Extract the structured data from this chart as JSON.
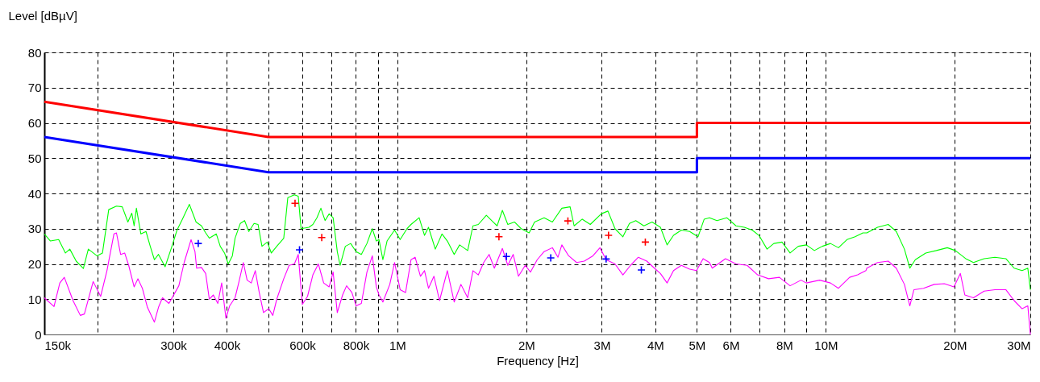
{
  "chart_data": {
    "type": "line",
    "xlabel": "Frequency [Hz]",
    "ylabel": "Level [dBµV]",
    "log": "x",
    "grid": true,
    "xlim": [
      150000,
      30000000
    ],
    "ylim": [
      0,
      80
    ],
    "xticks": [
      {
        "value": 150000,
        "label": "150k"
      },
      {
        "value": 200000,
        "label": null
      },
      {
        "value": 300000,
        "label": "300k"
      },
      {
        "value": 400000,
        "label": "400k"
      },
      {
        "value": 500000,
        "label": null
      },
      {
        "value": 600000,
        "label": "600k"
      },
      {
        "value": 700000,
        "label": null
      },
      {
        "value": 800000,
        "label": "800k"
      },
      {
        "value": 900000,
        "label": null
      },
      {
        "value": 1000000,
        "label": "1M"
      },
      {
        "value": 2000000,
        "label": "2M"
      },
      {
        "value": 3000000,
        "label": "3M"
      },
      {
        "value": 4000000,
        "label": "4M"
      },
      {
        "value": 5000000,
        "label": "5M"
      },
      {
        "value": 6000000,
        "label": "6M"
      },
      {
        "value": 7000000,
        "label": null
      },
      {
        "value": 8000000,
        "label": "8M"
      },
      {
        "value": 9000000,
        "label": null
      },
      {
        "value": 10000000,
        "label": "10M"
      },
      {
        "value": 20000000,
        "label": "20M"
      },
      {
        "value": 30000000,
        "label": "30M"
      }
    ],
    "yticks": [
      0,
      10,
      20,
      30,
      40,
      50,
      60,
      70,
      80
    ],
    "series": [
      {
        "marker": "none",
        "color": "#ff0000",
        "x": [
          150000,
          500000,
          5000000,
          5000000,
          30000000
        ],
        "values": [
          66,
          56,
          56,
          60,
          60
        ]
      },
      {
        "marker": "none",
        "color": "#0000ff",
        "x": [
          150000,
          500000,
          5000000,
          5000000,
          30000000
        ],
        "values": [
          56,
          46,
          46,
          50,
          50
        ]
      },
      {
        "marker": "none",
        "color": "#00ff00",
        "x": [
          150000,
          155000,
          162000,
          168000,
          172000,
          178000,
          185000,
          190000,
          199000,
          205000,
          212000,
          221000,
          228000,
          235000,
          240000,
          243000,
          246000,
          252000,
          259000,
          265000,
          271000,
          277000,
          287000,
          297000,
          306000,
          315000,
          327000,
          339000,
          349000,
          357000,
          364000,
          378000,
          386000,
          395000,
          403000,
          412000,
          418000,
          430000,
          440000,
          450000,
          463000,
          473000,
          483000,
          497000,
          508000,
          523000,
          543000,
          555000,
          575000,
          587000,
          596000,
          622000,
          635000,
          649000,
          663000,
          678000,
          693000,
          708000,
          724000,
          735000,
          756000,
          778000,
          801000,
          824000,
          849000,
          874000,
          893000,
          906000,
          925000,
          946000,
          985000,
          1015000,
          1053000,
          1076000,
          1124000,
          1157000,
          1182000,
          1226000,
          1271000,
          1308000,
          1357000,
          1397000,
          1459000,
          1501000,
          1545000,
          1613000,
          1672000,
          1709000,
          1758000,
          1810000,
          1876000,
          1945000,
          2030000,
          2090000,
          2200000,
          2300000,
          2420000,
          2530000,
          2585000,
          2700000,
          2820000,
          2990000,
          3100000,
          3220000,
          3360000,
          3480000,
          3600000,
          3760000,
          3930000,
          4110000,
          4260000,
          4410000,
          4600000,
          4810000,
          5030000,
          5200000,
          5350000,
          5570000,
          5870000,
          6170000,
          6450000,
          6730000,
          6980000,
          7290000,
          7560000,
          7900000,
          8250000,
          8620000,
          9000000,
          9400000,
          9810000,
          10250000,
          10700000,
          11200000,
          11700000,
          12200000,
          12460000,
          13200000,
          13980000,
          14600000,
          15250000,
          15700000,
          16170000,
          17100000,
          18100000,
          19200000,
          20050000,
          21200000,
          22100000,
          23400000,
          24800000,
          26300000,
          27500000,
          28700000,
          29600000,
          30000000
        ],
        "values": [
          28.5,
          26.5,
          26.9,
          23.1,
          24.2,
          20.8,
          18.7,
          24.2,
          22.3,
          23.1,
          35.4,
          36.4,
          36.2,
          31.9,
          34.4,
          30.8,
          35.8,
          28.5,
          29.2,
          25,
          21.2,
          22.7,
          19.2,
          24.6,
          29.6,
          32.7,
          36.9,
          31.9,
          30.8,
          28.8,
          27.3,
          28.5,
          25,
          23.1,
          20,
          22.3,
          27.3,
          31.5,
          32.3,
          29.2,
          31.5,
          31.2,
          25,
          26.2,
          23.1,
          25,
          27.3,
          38.8,
          39.6,
          39.2,
          30,
          30.4,
          31.2,
          33.1,
          35.8,
          32.3,
          34.2,
          33.1,
          23.5,
          19.6,
          25,
          25.8,
          23.5,
          22.7,
          25.8,
          30,
          26.5,
          26.9,
          21.2,
          26.5,
          29.6,
          26.9,
          30,
          31.2,
          33.1,
          28.1,
          30.4,
          24.2,
          28.5,
          26.5,
          22.7,
          25.4,
          23.8,
          30.8,
          31.2,
          33.8,
          31.9,
          30.8,
          35.2,
          31.2,
          31.9,
          30,
          28.8,
          31.9,
          33.1,
          31.9,
          35.8,
          36.2,
          30.8,
          32.7,
          31.2,
          34.2,
          35,
          30,
          27.7,
          31.5,
          32.3,
          30.8,
          31.9,
          30.4,
          25.4,
          28.1,
          29.6,
          29.2,
          27.7,
          32.7,
          33.1,
          32.3,
          33.1,
          30.8,
          30.4,
          29.6,
          28.1,
          24.2,
          25.8,
          26.2,
          23.1,
          25,
          25.4,
          23.8,
          25,
          25.8,
          24.6,
          26.9,
          27.7,
          28.8,
          28.8,
          30.4,
          31.2,
          29.2,
          24.2,
          18.8,
          21.2,
          23.1,
          23.8,
          24.6,
          23.8,
          21.5,
          20.4,
          21.5,
          21.9,
          21.5,
          18.8,
          18.1,
          18.8,
          12.7
        ]
      },
      {
        "marker": "none",
        "color": "#ff00ff",
        "x": [
          150000,
          158000,
          163000,
          167000,
          175000,
          182000,
          186000,
          195000,
          203000,
          210000,
          218000,
          221000,
          226000,
          231000,
          236000,
          243000,
          248000,
          254000,
          261000,
          271000,
          277000,
          283000,
          293000,
          309000,
          318000,
          330000,
          337000,
          340000,
          349000,
          357000,
          364000,
          372000,
          381000,
          389000,
          398000,
          406000,
          418000,
          427000,
          437000,
          446000,
          456000,
          466000,
          476000,
          487000,
          501000,
          512000,
          523000,
          543000,
          559000,
          575000,
          587000,
          600000,
          617000,
          635000,
          654000,
          673000,
          693000,
          708000,
          724000,
          745000,
          761000,
          783000,
          801000,
          824000,
          849000,
          874000,
          893000,
          906000,
          925000,
          960000,
          985000,
          1015000,
          1045000,
          1076000,
          1100000,
          1132000,
          1157000,
          1182000,
          1217000,
          1254000,
          1308000,
          1357000,
          1407000,
          1459000,
          1501000,
          1545000,
          1590000,
          1637000,
          1684000,
          1758000,
          1810000,
          1863000,
          1917000,
          1988000,
          2045000,
          2120000,
          2200000,
          2300000,
          2370000,
          2420000,
          2510000,
          2620000,
          2730000,
          2860000,
          2970000,
          3070000,
          3220000,
          3360000,
          3500000,
          3650000,
          3820000,
          3980000,
          4110000,
          4260000,
          4410000,
          4600000,
          4810000,
          4990000,
          5170000,
          5350000,
          5430000,
          5830000,
          6170000,
          6550000,
          6930000,
          7350000,
          7790000,
          8250000,
          8750000,
          9000000,
          9670000,
          10250000,
          10700000,
          11360000,
          11860000,
          12400000,
          12460000,
          13200000,
          13980000,
          14600000,
          15250000,
          15700000,
          16050000,
          16900000,
          17900000,
          18900000,
          19900000,
          20600000,
          21100000,
          22100000,
          23400000,
          24800000,
          26300000,
          27500000,
          28700000,
          29600000,
          30000000
        ],
        "values": [
          10.4,
          7.9,
          14.6,
          16.2,
          9.6,
          5.4,
          5.8,
          15,
          10.8,
          18.1,
          28.5,
          28.8,
          22.7,
          23.1,
          19.6,
          13.5,
          15.8,
          13.1,
          7.7,
          3.5,
          7.7,
          10.4,
          8.8,
          13.8,
          20.4,
          26.9,
          23.5,
          18.8,
          19,
          17.3,
          10,
          11.2,
          8.8,
          14.6,
          4.6,
          8.1,
          10.4,
          15,
          20.4,
          15.4,
          14.6,
          18.1,
          11.9,
          6.2,
          7.3,
          5.4,
          10,
          15.8,
          19.6,
          20,
          22.7,
          8.5,
          10.8,
          16.9,
          20,
          14.6,
          13.5,
          17.7,
          6.2,
          11.2,
          13.8,
          11.9,
          8.1,
          8.8,
          17.7,
          22.3,
          13.5,
          11.2,
          9.2,
          14.2,
          20.4,
          12.7,
          11.9,
          21.2,
          21.9,
          16.5,
          18.1,
          13.1,
          16.5,
          9.6,
          18.1,
          9.2,
          14.2,
          10.4,
          18.1,
          16.9,
          20.4,
          22.7,
          18.8,
          24.4,
          19.6,
          22.7,
          16.5,
          19.6,
          17.7,
          21.2,
          23.5,
          24.6,
          21.9,
          25.4,
          22.3,
          20.4,
          20.8,
          22.3,
          24.6,
          21.2,
          20,
          16.9,
          19.6,
          21.9,
          20.8,
          18.8,
          17.3,
          14.6,
          18.1,
          19.6,
          18.5,
          18.1,
          21.5,
          20.4,
          18.8,
          21.5,
          20,
          19.6,
          16.9,
          15.8,
          16.2,
          13.8,
          15.4,
          14.6,
          15.4,
          14.6,
          13.1,
          16.2,
          16.9,
          18.1,
          18.8,
          20.4,
          20.8,
          18.8,
          14.2,
          8.1,
          12.7,
          13.1,
          14.2,
          14.4,
          13.5,
          17.3,
          11.2,
          10.4,
          12.3,
          12.7,
          12.7,
          9.6,
          7.3,
          8.1,
          0
        ]
      },
      {
        "type": "scatter",
        "marker": "cross",
        "color": "#ff0000",
        "x": [
          577000,
          666000,
          1726000,
          2500000,
          3110000,
          3790000
        ],
        "values": [
          37.2,
          27.5,
          27.7,
          32.2,
          28.1,
          26.2
        ]
      },
      {
        "type": "scatter",
        "marker": "cross",
        "color": "#0000ff",
        "x": [
          343000,
          591000,
          1797000,
          2280000,
          3070000,
          3710000
        ],
        "values": [
          25.8,
          24,
          22.1,
          21.7,
          21.4,
          18.3
        ]
      }
    ]
  }
}
